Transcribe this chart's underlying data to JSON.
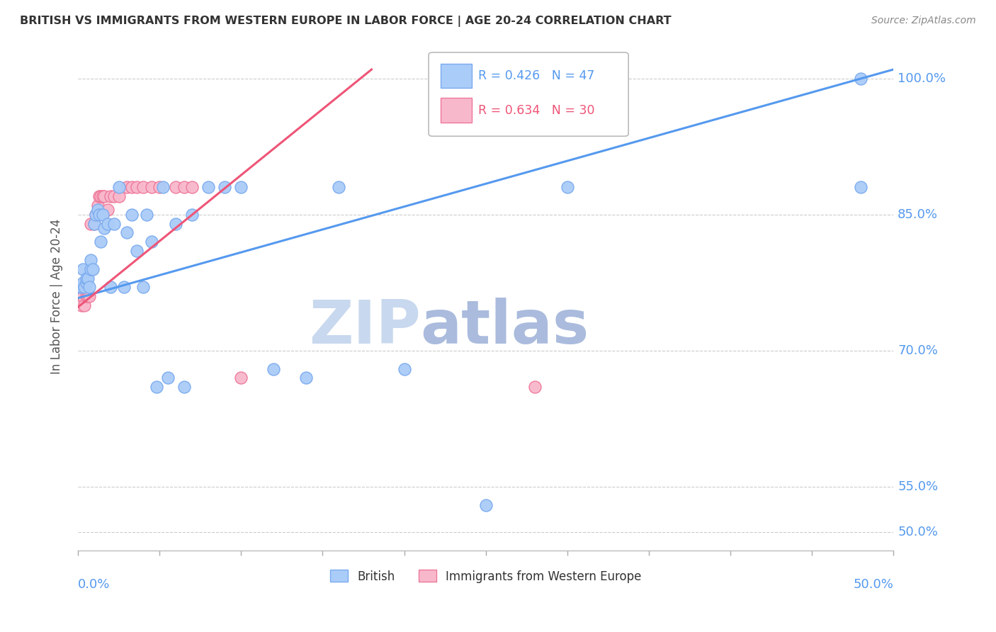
{
  "title": "BRITISH VS IMMIGRANTS FROM WESTERN EUROPE IN LABOR FORCE | AGE 20-24 CORRELATION CHART",
  "source": "Source: ZipAtlas.com",
  "ylabel": "In Labor Force | Age 20-24",
  "british_R": 0.426,
  "british_N": 47,
  "immigrant_R": 0.634,
  "immigrant_N": 30,
  "british_color": "#aaccf8",
  "british_edge": "#7aaaee",
  "immigrant_color": "#f8b8cc",
  "immigrant_edge": "#ee7799",
  "british_line_color": "#5599ee",
  "immigrant_line_color": "#ee5577",
  "background_color": "#ffffff",
  "grid_color": "#cccccc",
  "axis_label_color": "#5599ee",
  "title_color": "#333333",
  "watermark_zip_color": "#c8d8ee",
  "watermark_atlas_color": "#aabbdd",
  "xlim": [
    0.0,
    0.5
  ],
  "ylim": [
    0.48,
    1.04
  ],
  "yticks": [
    0.5,
    0.55,
    0.7,
    0.85,
    1.0
  ],
  "ytick_labels": [
    "50.0%",
    "55.0%",
    "70.0%",
    "85.0%",
    "100.0%"
  ],
  "british_x": [
    0.001,
    0.002,
    0.003,
    0.003,
    0.004,
    0.005,
    0.005,
    0.006,
    0.007,
    0.008,
    0.008,
    0.009,
    0.01,
    0.011,
    0.012,
    0.013,
    0.014,
    0.015,
    0.016,
    0.018,
    0.02,
    0.022,
    0.025,
    0.028,
    0.03,
    0.033,
    0.036,
    0.04,
    0.042,
    0.045,
    0.048,
    0.052,
    0.055,
    0.06,
    0.065,
    0.07,
    0.08,
    0.09,
    0.1,
    0.12,
    0.14,
    0.16,
    0.2,
    0.25,
    0.3,
    0.48,
    0.48
  ],
  "british_y": [
    0.77,
    0.77,
    0.775,
    0.79,
    0.77,
    0.775,
    0.78,
    0.78,
    0.77,
    0.79,
    0.8,
    0.79,
    0.84,
    0.85,
    0.855,
    0.85,
    0.82,
    0.85,
    0.835,
    0.84,
    0.77,
    0.84,
    0.88,
    0.77,
    0.83,
    0.85,
    0.81,
    0.77,
    0.85,
    0.82,
    0.66,
    0.88,
    0.67,
    0.84,
    0.66,
    0.85,
    0.88,
    0.88,
    0.88,
    0.68,
    0.67,
    0.88,
    0.68,
    0.53,
    0.88,
    0.88,
    1.0
  ],
  "immigrant_x": [
    0.001,
    0.002,
    0.003,
    0.004,
    0.005,
    0.006,
    0.007,
    0.008,
    0.01,
    0.011,
    0.012,
    0.013,
    0.014,
    0.015,
    0.016,
    0.018,
    0.02,
    0.022,
    0.025,
    0.03,
    0.033,
    0.036,
    0.04,
    0.045,
    0.05,
    0.06,
    0.065,
    0.07,
    0.1,
    0.28
  ],
  "immigrant_y": [
    0.77,
    0.75,
    0.76,
    0.75,
    0.76,
    0.76,
    0.76,
    0.84,
    0.84,
    0.85,
    0.86,
    0.87,
    0.87,
    0.87,
    0.87,
    0.855,
    0.87,
    0.87,
    0.87,
    0.88,
    0.88,
    0.88,
    0.88,
    0.88,
    0.88,
    0.88,
    0.88,
    0.88,
    0.67,
    0.66
  ],
  "brit_line_x0": 0.0,
  "brit_line_y0": 0.758,
  "brit_line_x1": 0.5,
  "brit_line_y1": 1.01,
  "imm_line_x0": 0.0,
  "imm_line_y0": 0.748,
  "imm_line_x1": 0.18,
  "imm_line_y1": 1.01
}
